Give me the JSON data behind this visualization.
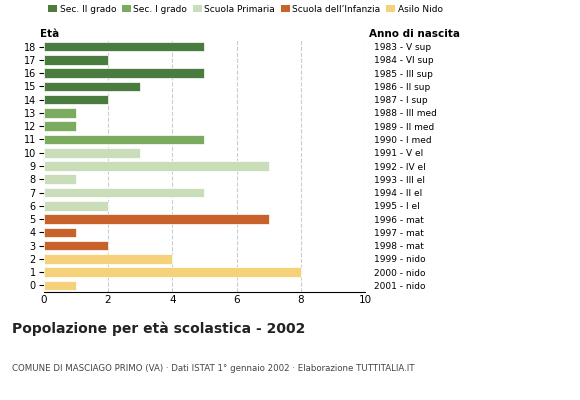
{
  "ages": [
    18,
    17,
    16,
    15,
    14,
    13,
    12,
    11,
    10,
    9,
    8,
    7,
    6,
    5,
    4,
    3,
    2,
    1,
    0
  ],
  "values": [
    5,
    2,
    5,
    3,
    2,
    1,
    1,
    5,
    3,
    7,
    1,
    5,
    2,
    7,
    1,
    2,
    4,
    8,
    1
  ],
  "categories": {
    "Sec. II grado": {
      "ages": [
        18,
        17,
        16,
        15,
        14
      ],
      "color": "#4a7c3f"
    },
    "Sec. I grado": {
      "ages": [
        13,
        12,
        11
      ],
      "color": "#7aab5e"
    },
    "Scuola Primaria": {
      "ages": [
        10,
        9,
        8,
        7,
        6
      ],
      "color": "#c8ddb8"
    },
    "Scuola dell'Infanzia": {
      "ages": [
        5,
        4,
        3
      ],
      "color": "#c8622a"
    },
    "Asilo Nido": {
      "ages": [
        2,
        1,
        0
      ],
      "color": "#f5d27a"
    }
  },
  "right_labels": [
    "1983 - V sup",
    "1984 - VI sup",
    "1985 - III sup",
    "1986 - II sup",
    "1987 - I sup",
    "1988 - III med",
    "1989 - II med",
    "1990 - I med",
    "1991 - V el",
    "1992 - IV el",
    "1993 - III el",
    "1994 - II el",
    "1995 - I el",
    "1996 - mat",
    "1997 - mat",
    "1998 - mat",
    "1999 - nido",
    "2000 - nido",
    "2001 - nido"
  ],
  "title": "Popolazione per età scolastica - 2002",
  "subtitle": "COMUNE DI MASCIAGO PRIMO (VA) · Dati ISTAT 1° gennaio 2002 · Elaborazione TUTTITALIA.IT",
  "xlabel_left": "Età",
  "xlabel_right": "Anno di nascita",
  "xlim": [
    0,
    10
  ],
  "xticks": [
    0,
    2,
    4,
    6,
    8,
    10
  ],
  "background_color": "#ffffff",
  "grid_color": "#cccccc",
  "legend_order": [
    "Sec. II grado",
    "Sec. I grado",
    "Scuola Primaria",
    "Scuola dell’Infanzia",
    "Asilo Nido"
  ],
  "legend_colors": [
    "#4a7c3f",
    "#7aab5e",
    "#c8ddb8",
    "#c8622a",
    "#f5d27a"
  ]
}
